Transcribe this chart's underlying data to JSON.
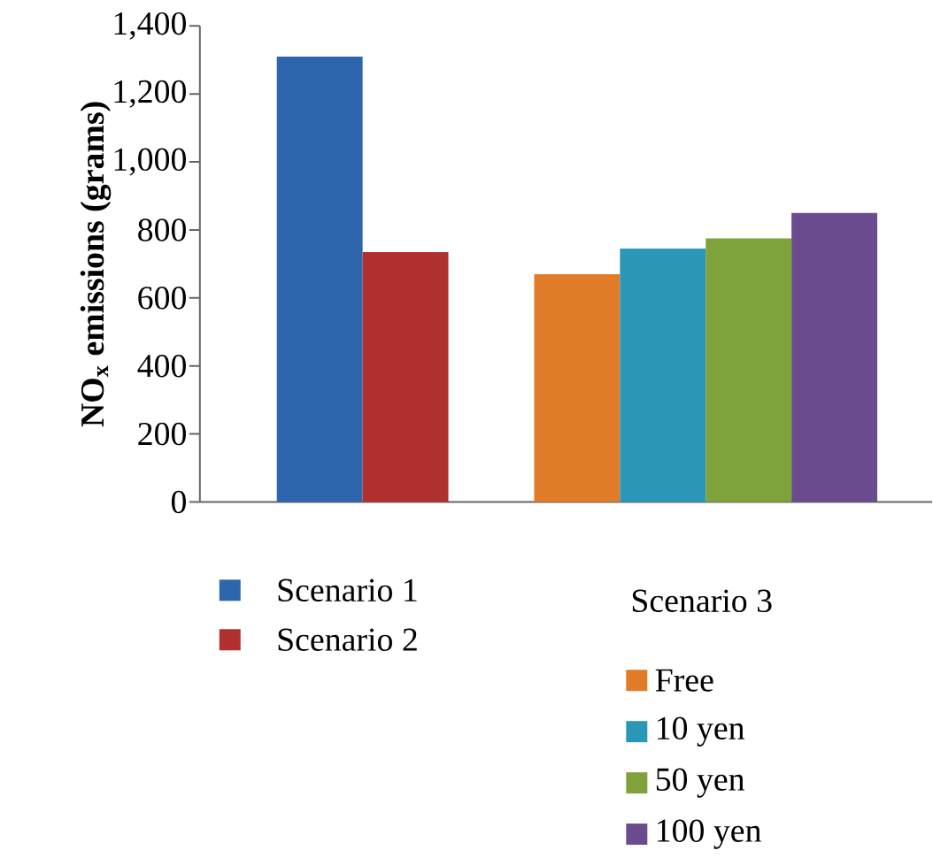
{
  "chart_data": {
    "type": "bar",
    "ylabel": "NO$_{x}$ emissions (grams)",
    "categories": [
      null,
      null
    ],
    "series": [
      {
        "name": "Scenario 1",
        "color": "#2e66ad",
        "values": [
          1310,
          null
        ]
      },
      {
        "name": "Scenario 2",
        "color": "#b03030",
        "values": [
          735,
          null
        ]
      },
      {
        "name": "Free",
        "color": "#e07b28",
        "values": [
          null,
          670
        ]
      },
      {
        "name": "10 yen",
        "color": "#2b97b8",
        "values": [
          null,
          745
        ]
      },
      {
        "name": "50 yen",
        "color": "#7fa23a",
        "values": [
          null,
          775
        ]
      },
      {
        "name": "100 yen",
        "color": "#6a4c8e",
        "values": [
          null,
          850
        ]
      }
    ],
    "legend_title": "Scenario 3",
    "ylim": [
      0,
      1400
    ],
    "yticks": [
      0,
      200,
      400,
      600,
      800,
      {
        "value": 1000,
        "label": "1,000"
      },
      {
        "value": 1200,
        "label": "1,200"
      },
      {
        "value": 1400,
        "label": "1,400"
      }
    ],
    "legend": "bottom",
    "grid": false
  }
}
